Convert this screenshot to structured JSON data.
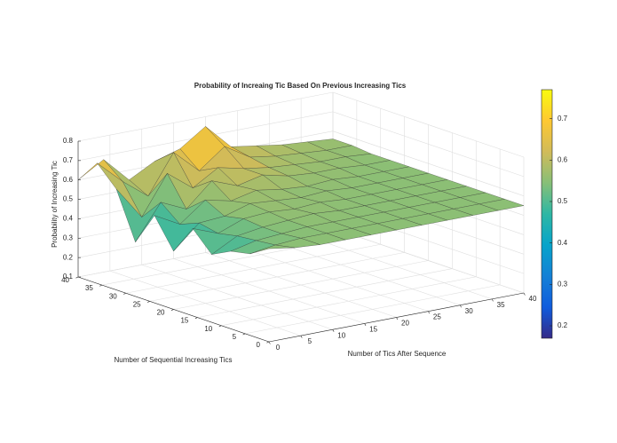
{
  "chart_data": {
    "type": "surface",
    "title": "Probability of Increaing Tic Based On Previous Increasing Tics",
    "xlabel": "Number of Tics After Sequence",
    "ylabel": "Number of Sequential Increasing Tics",
    "zlabel": "Probability of Increasing Tic",
    "x": [
      0,
      4,
      8,
      12,
      16,
      20,
      24,
      28,
      32,
      36,
      40
    ],
    "y": [
      0,
      4,
      8,
      12,
      16,
      20,
      24,
      28,
      32,
      36,
      40
    ],
    "z": [
      [
        0.58,
        0.56,
        0.55,
        0.55,
        0.55,
        0.55,
        0.55,
        0.55,
        0.55,
        0.55,
        0.55
      ],
      [
        0.52,
        0.54,
        0.55,
        0.55,
        0.55,
        0.55,
        0.55,
        0.55,
        0.55,
        0.55,
        0.55
      ],
      [
        0.5,
        0.53,
        0.54,
        0.55,
        0.55,
        0.55,
        0.55,
        0.55,
        0.55,
        0.55,
        0.55
      ],
      [
        0.45,
        0.52,
        0.54,
        0.55,
        0.56,
        0.55,
        0.55,
        0.55,
        0.55,
        0.55,
        0.55
      ],
      [
        0.55,
        0.5,
        0.55,
        0.56,
        0.55,
        0.56,
        0.55,
        0.55,
        0.55,
        0.55,
        0.55
      ],
      [
        0.4,
        0.52,
        0.53,
        0.57,
        0.56,
        0.55,
        0.56,
        0.55,
        0.55,
        0.55,
        0.55
      ],
      [
        0.55,
        0.48,
        0.58,
        0.55,
        0.58,
        0.56,
        0.55,
        0.56,
        0.55,
        0.55,
        0.55
      ],
      [
        0.38,
        0.56,
        0.5,
        0.62,
        0.57,
        0.6,
        0.57,
        0.56,
        0.56,
        0.55,
        0.55
      ],
      [
        0.62,
        0.45,
        0.65,
        0.55,
        0.63,
        0.6,
        0.58,
        0.57,
        0.56,
        0.56,
        0.55
      ],
      [
        0.72,
        0.6,
        0.5,
        0.7,
        0.58,
        0.68,
        0.6,
        0.58,
        0.57,
        0.56,
        0.56
      ],
      [
        0.6,
        0.68,
        0.55,
        0.62,
        0.66,
        0.75,
        0.62,
        0.6,
        0.58,
        0.57,
        0.56
      ]
    ],
    "xlim": [
      0,
      40
    ],
    "ylim": [
      0,
      40
    ],
    "zlim": [
      0.1,
      0.8
    ],
    "xticks": [
      0,
      5,
      10,
      15,
      20,
      25,
      30,
      35,
      40
    ],
    "yticks": [
      0,
      5,
      10,
      15,
      20,
      25,
      30,
      35,
      40
    ],
    "zticks": [
      0.1,
      0.2,
      0.3,
      0.4,
      0.5,
      0.6,
      0.7,
      0.8
    ],
    "clim": [
      0.17,
      0.77
    ],
    "colorbar_ticks": [
      0.2,
      0.3,
      0.4,
      0.5,
      0.6,
      0.7
    ],
    "colormap": [
      "#352a87",
      "#0f5cdd",
      "#1481d6",
      "#06a4ca",
      "#2eb7a4",
      "#87bf77",
      "#d1bb59",
      "#fec832",
      "#f9fb0e"
    ],
    "grid": true
  }
}
